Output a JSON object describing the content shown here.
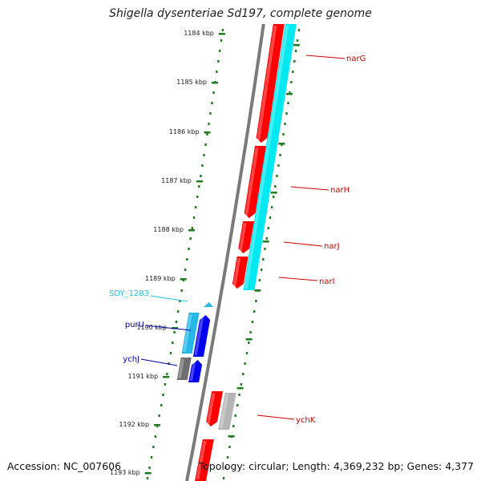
{
  "title": "Shigella dysenteriae Sd197, complete genome",
  "footer": {
    "accession": "Accession: NC_007606",
    "topology": "Topology: circular; Length: 4,369,232 bp; Genes: 4,377"
  },
  "scale": {
    "unit": "kbp",
    "ticks": [
      "1184 kbp",
      "1185 kbp",
      "1186 kbp",
      "1187 kbp",
      "1188 kbp",
      "1189 kbp",
      "1190 kbp",
      "1191 kbp",
      "1192 kbp",
      "1193 kbp"
    ]
  },
  "colors": {
    "backbone": "#7a7a7a",
    "scale_dots": "#1e7d1e",
    "red_gene": "#ff0000",
    "cyan_gene": "#00e8f0",
    "blue_gene": "#0000ee",
    "light_blue_gene": "#25b7e6",
    "gray_gene": "#6e6e6e",
    "light_gray_gene": "#b5b5b5",
    "red_label": "#cc0000",
    "blue_label": "#0000aa",
    "cyan_label": "#22c0e8"
  },
  "genes": [
    {
      "name": "narG",
      "color": "#cc0000"
    },
    {
      "name": "narH",
      "color": "#cc0000"
    },
    {
      "name": "narJ",
      "color": "#cc0000"
    },
    {
      "name": "narI",
      "color": "#cc0000"
    },
    {
      "name": "SDY_1283",
      "color": "#22c0e8"
    },
    {
      "name": "purU",
      "color": "#0000aa"
    },
    {
      "name": "ychJ",
      "color": "#0000aa"
    },
    {
      "name": "ychK",
      "color": "#cc0000"
    }
  ]
}
